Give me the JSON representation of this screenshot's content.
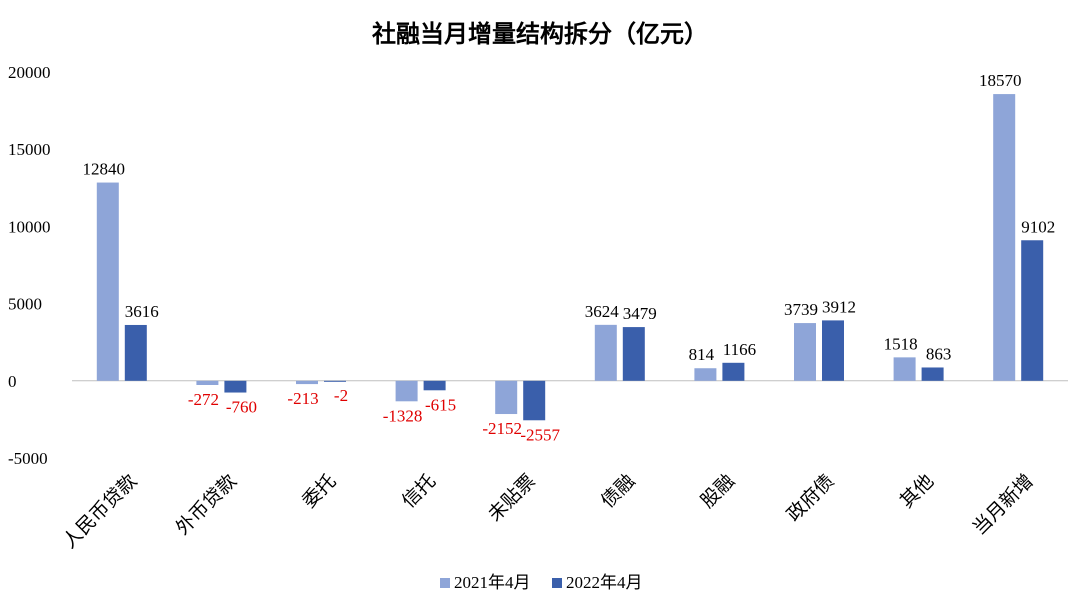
{
  "chart_data": {
    "type": "bar",
    "title": "社融当月增量结构拆分（亿元）",
    "categories": [
      "人民币贷款",
      "外币贷款",
      "委托",
      "信托",
      "未贴票",
      "债融",
      "股融",
      "政府债",
      "其他",
      "当月新增"
    ],
    "series": [
      {
        "name": "2021年4月",
        "color": "#8EA5D8",
        "values": [
          12840,
          -272,
          -213,
          -1328,
          -2152,
          3624,
          814,
          3739,
          1518,
          18570
        ]
      },
      {
        "name": "2022年4月",
        "color": "#3A5FAB",
        "values": [
          3616,
          -760,
          -2,
          -615,
          -2557,
          3479,
          1166,
          3912,
          863,
          9102
        ]
      }
    ],
    "ylim": [
      -5000,
      20000
    ],
    "yticks": [
      20000,
      15000,
      10000,
      5000,
      0,
      -5000
    ],
    "xlabel": "",
    "ylabel": "",
    "grid": false,
    "legend": "bottom",
    "positive_label_color": "#000000",
    "negative_label_color": "#E00000"
  }
}
